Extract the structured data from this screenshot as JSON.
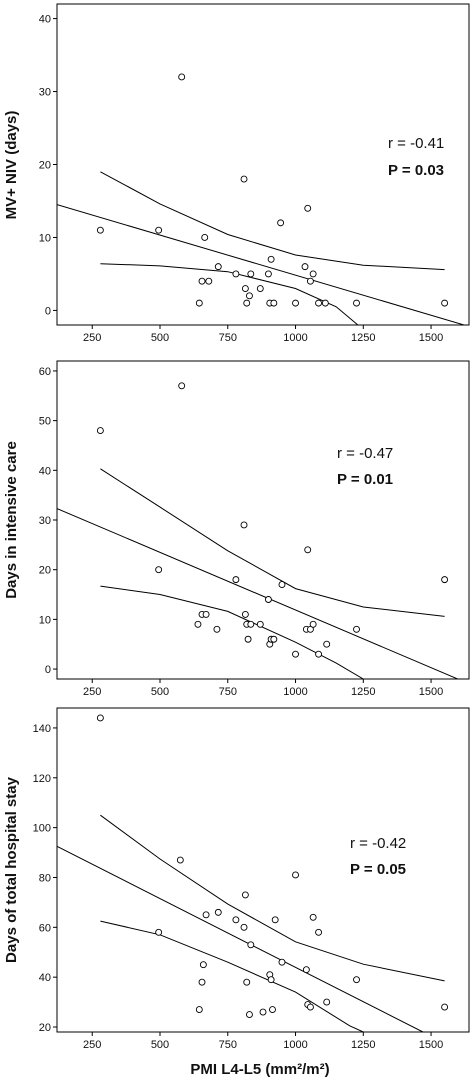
{
  "chart_data": [
    {
      "type": "scatter",
      "ylabel": "MV+ NIV (days)",
      "xlim": [
        120,
        1640
      ],
      "ylim": [
        -2,
        42
      ],
      "xticks": [
        250,
        500,
        750,
        1000,
        1250,
        1500
      ],
      "yticks": [
        0,
        10,
        20,
        30,
        40
      ],
      "annotation_r": "r = -0.41",
      "annotation_p": "P = 0.03",
      "points": [
        [
          280,
          11
        ],
        [
          495,
          11
        ],
        [
          580,
          32
        ],
        [
          645,
          1
        ],
        [
          655,
          4
        ],
        [
          665,
          10
        ],
        [
          680,
          4
        ],
        [
          715,
          6
        ],
        [
          780,
          5
        ],
        [
          810,
          18
        ],
        [
          815,
          3
        ],
        [
          820,
          1
        ],
        [
          830,
          2
        ],
        [
          835,
          5
        ],
        [
          870,
          3
        ],
        [
          900,
          5
        ],
        [
          905,
          1
        ],
        [
          910,
          7
        ],
        [
          920,
          1
        ],
        [
          945,
          12
        ],
        [
          1000,
          1
        ],
        [
          1035,
          6
        ],
        [
          1045,
          14
        ],
        [
          1055,
          4
        ],
        [
          1065,
          5
        ],
        [
          1085,
          1
        ],
        [
          1110,
          1
        ],
        [
          1225,
          1
        ],
        [
          1550,
          1
        ]
      ],
      "fit_line": [
        [
          120,
          14.5
        ],
        [
          1640,
          -2.2
        ]
      ],
      "ci_upper": [
        [
          280,
          19.0
        ],
        [
          500,
          14.6
        ],
        [
          750,
          10.4
        ],
        [
          1000,
          7.6
        ],
        [
          1250,
          6.2
        ],
        [
          1550,
          5.6
        ]
      ],
      "ci_lower": [
        [
          280,
          6.4
        ],
        [
          500,
          6.1
        ],
        [
          750,
          5.3
        ],
        [
          1000,
          3.0
        ],
        [
          1150,
          0.5
        ],
        [
          1230,
          -2
        ]
      ]
    },
    {
      "type": "scatter",
      "ylabel": "Days in intensive care",
      "xlim": [
        120,
        1640
      ],
      "ylim": [
        -2,
        62
      ],
      "xticks": [
        250,
        500,
        750,
        1000,
        1250,
        1500
      ],
      "yticks": [
        0,
        10,
        20,
        30,
        40,
        50,
        60
      ],
      "annotation_r": "r = -0.47",
      "annotation_p": "P = 0.01",
      "points": [
        [
          280,
          48
        ],
        [
          495,
          20
        ],
        [
          580,
          57
        ],
        [
          640,
          9
        ],
        [
          655,
          11
        ],
        [
          670,
          11
        ],
        [
          710,
          8
        ],
        [
          780,
          18
        ],
        [
          810,
          29
        ],
        [
          815,
          11
        ],
        [
          820,
          9
        ],
        [
          825,
          6
        ],
        [
          835,
          9
        ],
        [
          870,
          9
        ],
        [
          900,
          14
        ],
        [
          905,
          5
        ],
        [
          910,
          6
        ],
        [
          920,
          6
        ],
        [
          950,
          17
        ],
        [
          1000,
          3
        ],
        [
          1040,
          8
        ],
        [
          1045,
          24
        ],
        [
          1055,
          8
        ],
        [
          1065,
          9
        ],
        [
          1085,
          3
        ],
        [
          1115,
          5
        ],
        [
          1225,
          8
        ],
        [
          1550,
          18
        ]
      ],
      "fit_line": [
        [
          120,
          32.3
        ],
        [
          1620,
          -2.5
        ]
      ],
      "ci_upper": [
        [
          280,
          40.3
        ],
        [
          500,
          32.6
        ],
        [
          750,
          23.8
        ],
        [
          1000,
          16.2
        ],
        [
          1250,
          12.5
        ],
        [
          1550,
          10.6
        ]
      ],
      "ci_lower": [
        [
          280,
          16.7
        ],
        [
          500,
          15.0
        ],
        [
          750,
          11.6
        ],
        [
          1000,
          5.4
        ],
        [
          1150,
          1.2
        ],
        [
          1250,
          -2
        ]
      ]
    },
    {
      "type": "scatter",
      "ylabel": "Days of total hospital stay",
      "xlabel": "PMI L4-L5 (mm²/m²)",
      "xlim": [
        120,
        1640
      ],
      "ylim": [
        18,
        148
      ],
      "xticks": [
        250,
        500,
        750,
        1000,
        1250,
        1500
      ],
      "yticks": [
        20,
        40,
        60,
        80,
        100,
        120,
        140
      ],
      "annotation_r": "r = -0.42",
      "annotation_p": "P = 0.05",
      "points": [
        [
          280,
          144
        ],
        [
          495,
          58
        ],
        [
          575,
          87
        ],
        [
          645,
          27
        ],
        [
          655,
          38
        ],
        [
          660,
          45
        ],
        [
          670,
          65
        ],
        [
          715,
          66
        ],
        [
          780,
          63
        ],
        [
          810,
          60
        ],
        [
          815,
          73
        ],
        [
          820,
          38
        ],
        [
          830,
          25
        ],
        [
          835,
          53
        ],
        [
          880,
          26
        ],
        [
          905,
          41
        ],
        [
          910,
          39
        ],
        [
          915,
          27
        ],
        [
          925,
          63
        ],
        [
          950,
          46
        ],
        [
          1000,
          81
        ],
        [
          1040,
          43
        ],
        [
          1045,
          29
        ],
        [
          1055,
          28
        ],
        [
          1065,
          64
        ],
        [
          1085,
          58
        ],
        [
          1115,
          30
        ],
        [
          1225,
          39
        ],
        [
          1550,
          28
        ]
      ],
      "fit_line": [
        [
          120,
          92.5
        ],
        [
          1470,
          18
        ]
      ],
      "ci_upper": [
        [
          280,
          105
        ],
        [
          500,
          87.4
        ],
        [
          750,
          69.3
        ],
        [
          1000,
          54.2
        ],
        [
          1250,
          45.2
        ],
        [
          1550,
          38.5
        ]
      ],
      "ci_lower": [
        [
          280,
          62.5
        ],
        [
          500,
          57.0
        ],
        [
          750,
          46.0
        ],
        [
          1000,
          34.0
        ],
        [
          1200,
          20.5
        ],
        [
          1250,
          18
        ]
      ]
    }
  ]
}
